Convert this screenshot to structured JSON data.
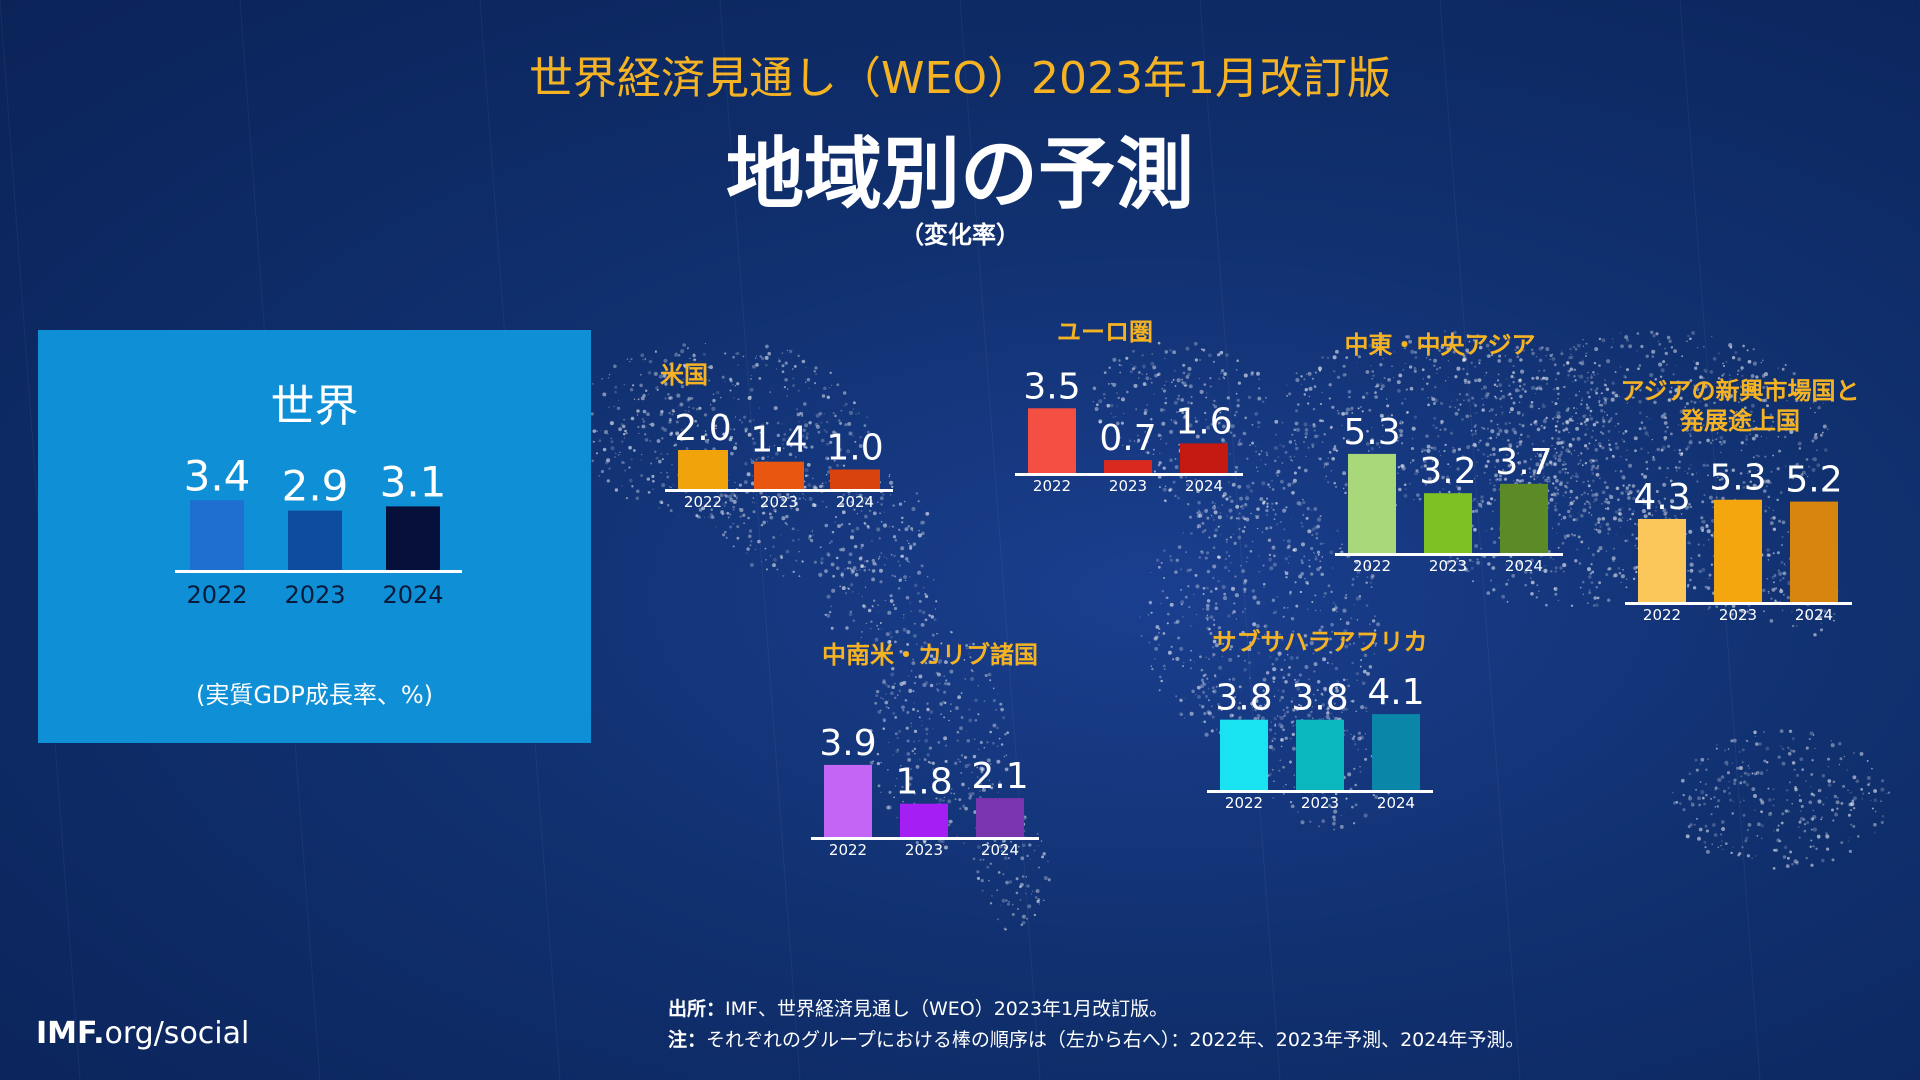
{
  "header": {
    "super_title": "世界経済見通し（WEO）2023年1月改訂版",
    "title": "地域別の予測",
    "subtitle": "（変化率）"
  },
  "world": {
    "title": "世界",
    "note": "(実質GDP成長率、%)"
  },
  "chart_data": [
    {
      "id": "world",
      "type": "bar",
      "title": "世界",
      "categories": [
        "2022",
        "2023",
        "2024"
      ],
      "values": [
        3.4,
        2.9,
        3.1
      ],
      "value_labels": [
        "3.4",
        "2.9",
        "3.1"
      ],
      "colors": [
        "#1f6fd1",
        "#0d4c9e",
        "#07103a"
      ]
    },
    {
      "id": "usa",
      "type": "bar",
      "title": "米国",
      "categories": [
        "2022",
        "2023",
        "2024"
      ],
      "values": [
        2.0,
        1.4,
        1.0
      ],
      "value_labels": [
        "2.0",
        "1.4",
        "1.0"
      ],
      "colors": [
        "#f0a30a",
        "#e8560f",
        "#d9430e"
      ]
    },
    {
      "id": "euro",
      "type": "bar",
      "title": "ユーロ圏",
      "categories": [
        "2022",
        "2023",
        "2024"
      ],
      "values": [
        3.5,
        0.7,
        1.6
      ],
      "value_labels": [
        "3.5",
        "0.7",
        "1.6"
      ],
      "colors": [
        "#f44f42",
        "#da2a1f",
        "#c41a12"
      ]
    },
    {
      "id": "mideast",
      "type": "bar",
      "title": "中東・中央アジア",
      "categories": [
        "2022",
        "2023",
        "2024"
      ],
      "values": [
        5.3,
        3.2,
        3.7
      ],
      "value_labels": [
        "5.3",
        "3.2",
        "3.7"
      ],
      "colors": [
        "#a9d87a",
        "#7dc123",
        "#5c8a26"
      ]
    },
    {
      "id": "asia",
      "type": "bar",
      "title": "アジアの新興市場国と発展途上国",
      "title_lines": [
        "アジアの新興市場国と",
        "発展途上国"
      ],
      "categories": [
        "2022",
        "2023",
        "2024"
      ],
      "values": [
        4.3,
        5.3,
        5.2
      ],
      "value_labels": [
        "4.3",
        "5.3",
        "5.2"
      ],
      "colors": [
        "#fbc65a",
        "#f3a60d",
        "#d88510"
      ]
    },
    {
      "id": "latam",
      "type": "bar",
      "title": "中南米・カリブ諸国",
      "categories": [
        "2022",
        "2023",
        "2024"
      ],
      "values": [
        3.9,
        1.8,
        2.1
      ],
      "value_labels": [
        "3.9",
        "1.8",
        "2.1"
      ],
      "colors": [
        "#c565f6",
        "#a51ef4",
        "#7a34ae"
      ]
    },
    {
      "id": "ssa",
      "type": "bar",
      "title": "サブサハラアフリカ",
      "categories": [
        "2022",
        "2023",
        "2024"
      ],
      "values": [
        3.8,
        3.8,
        4.1
      ],
      "value_labels": [
        "3.8",
        "3.8",
        "4.1"
      ],
      "colors": [
        "#19e3f0",
        "#0bb7bf",
        "#0a86a8"
      ]
    }
  ],
  "footer": {
    "logo_bold": "IMF.",
    "logo_rest": "org/social",
    "source_label": "出所：",
    "source_text": "IMF、世界経済見通し（WEO）2023年1月改訂版。",
    "note_label": "注：",
    "note_text": "それぞれのグループにおける棒の順序は（左から右へ）：2022年、2023年予測、2024年予測。"
  }
}
